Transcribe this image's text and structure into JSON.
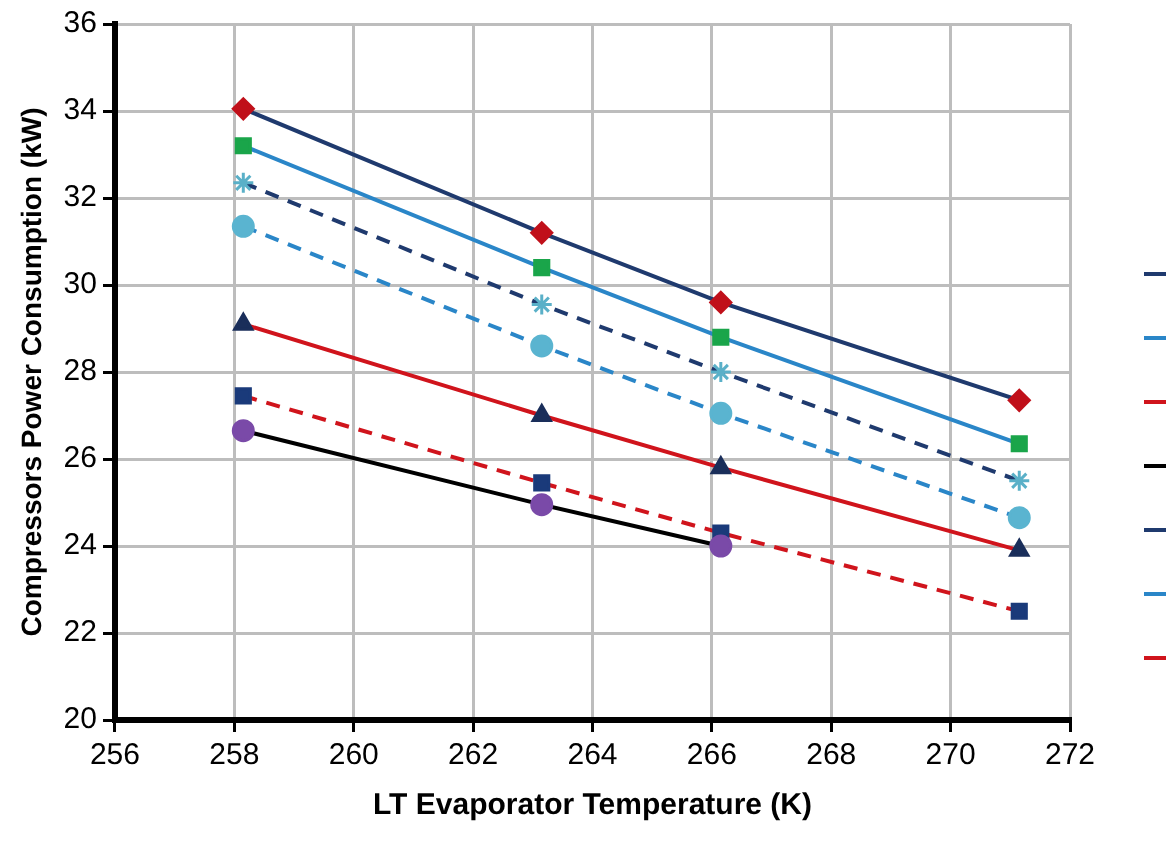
{
  "chart_data": {
    "type": "line",
    "xlabel": "LT Evaporator Temperature (K)",
    "ylabel": "Compressors Power Consumption (kW)",
    "x": [
      258.15,
      263.15,
      266.15,
      271.15
    ],
    "xlim": [
      256,
      272
    ],
    "xticks": [
      256,
      258,
      260,
      262,
      264,
      266,
      268,
      270,
      272
    ],
    "ylim": [
      20,
      36
    ],
    "yticks": [
      20,
      22,
      24,
      26,
      28,
      30,
      32,
      34,
      36
    ],
    "grid": true,
    "legend": false,
    "series": [
      {
        "color": "#1f3a6e",
        "line_style": "solid",
        "marker": "diamond",
        "colors": [
          "#c0101a",
          "#c0101a",
          "#c0101a",
          "#c0101a"
        ],
        "values": [
          34.05,
          31.2,
          29.6,
          27.35
        ]
      },
      {
        "color": "#2a86c8",
        "line_style": "solid",
        "marker": "square",
        "colors": [
          "#1aa54a",
          "#1aa54a",
          "#1aa54a",
          "#1aa54a"
        ],
        "values": [
          33.2,
          30.4,
          28.8,
          26.35
        ]
      },
      {
        "color": "#d0141c",
        "line_style": "solid",
        "marker": "triangle",
        "colors": [
          "#1a2e5a",
          "#1a2e5a",
          "#1a2e5a",
          "#1a2e5a"
        ],
        "values": [
          29.1,
          27.0,
          25.8,
          23.9
        ]
      },
      {
        "color": "#000000",
        "line_style": "solid",
        "marker": "circle",
        "colors": [
          "#7a4aa8",
          "#7a4aa8",
          "#7a4aa8",
          null
        ],
        "values": [
          26.65,
          24.95,
          24.0,
          null
        ]
      },
      {
        "color": "#1f3a6e",
        "line_style": "dashed",
        "marker": "cross",
        "colors": [
          "#5ab0c8",
          "#5ab0c8",
          "#5ab0c8",
          "#5ab0c8"
        ],
        "values": [
          32.35,
          29.55,
          28.0,
          25.5
        ]
      },
      {
        "color": "#2a86c8",
        "line_style": "dashed",
        "marker": "circle",
        "colors": [
          "#5ab4d0",
          "#5ab4d0",
          "#5ab4d0",
          "#5ab4d0"
        ],
        "values": [
          31.35,
          28.6,
          27.05,
          24.65
        ]
      },
      {
        "color": "#d0141c",
        "line_style": "dashed",
        "marker": "square",
        "colors": [
          "#1a3a7a",
          "#1a3a7a",
          "#1a3a7a",
          "#1a3a7a"
        ],
        "values": [
          27.45,
          25.45,
          24.3,
          22.5
        ]
      }
    ]
  }
}
